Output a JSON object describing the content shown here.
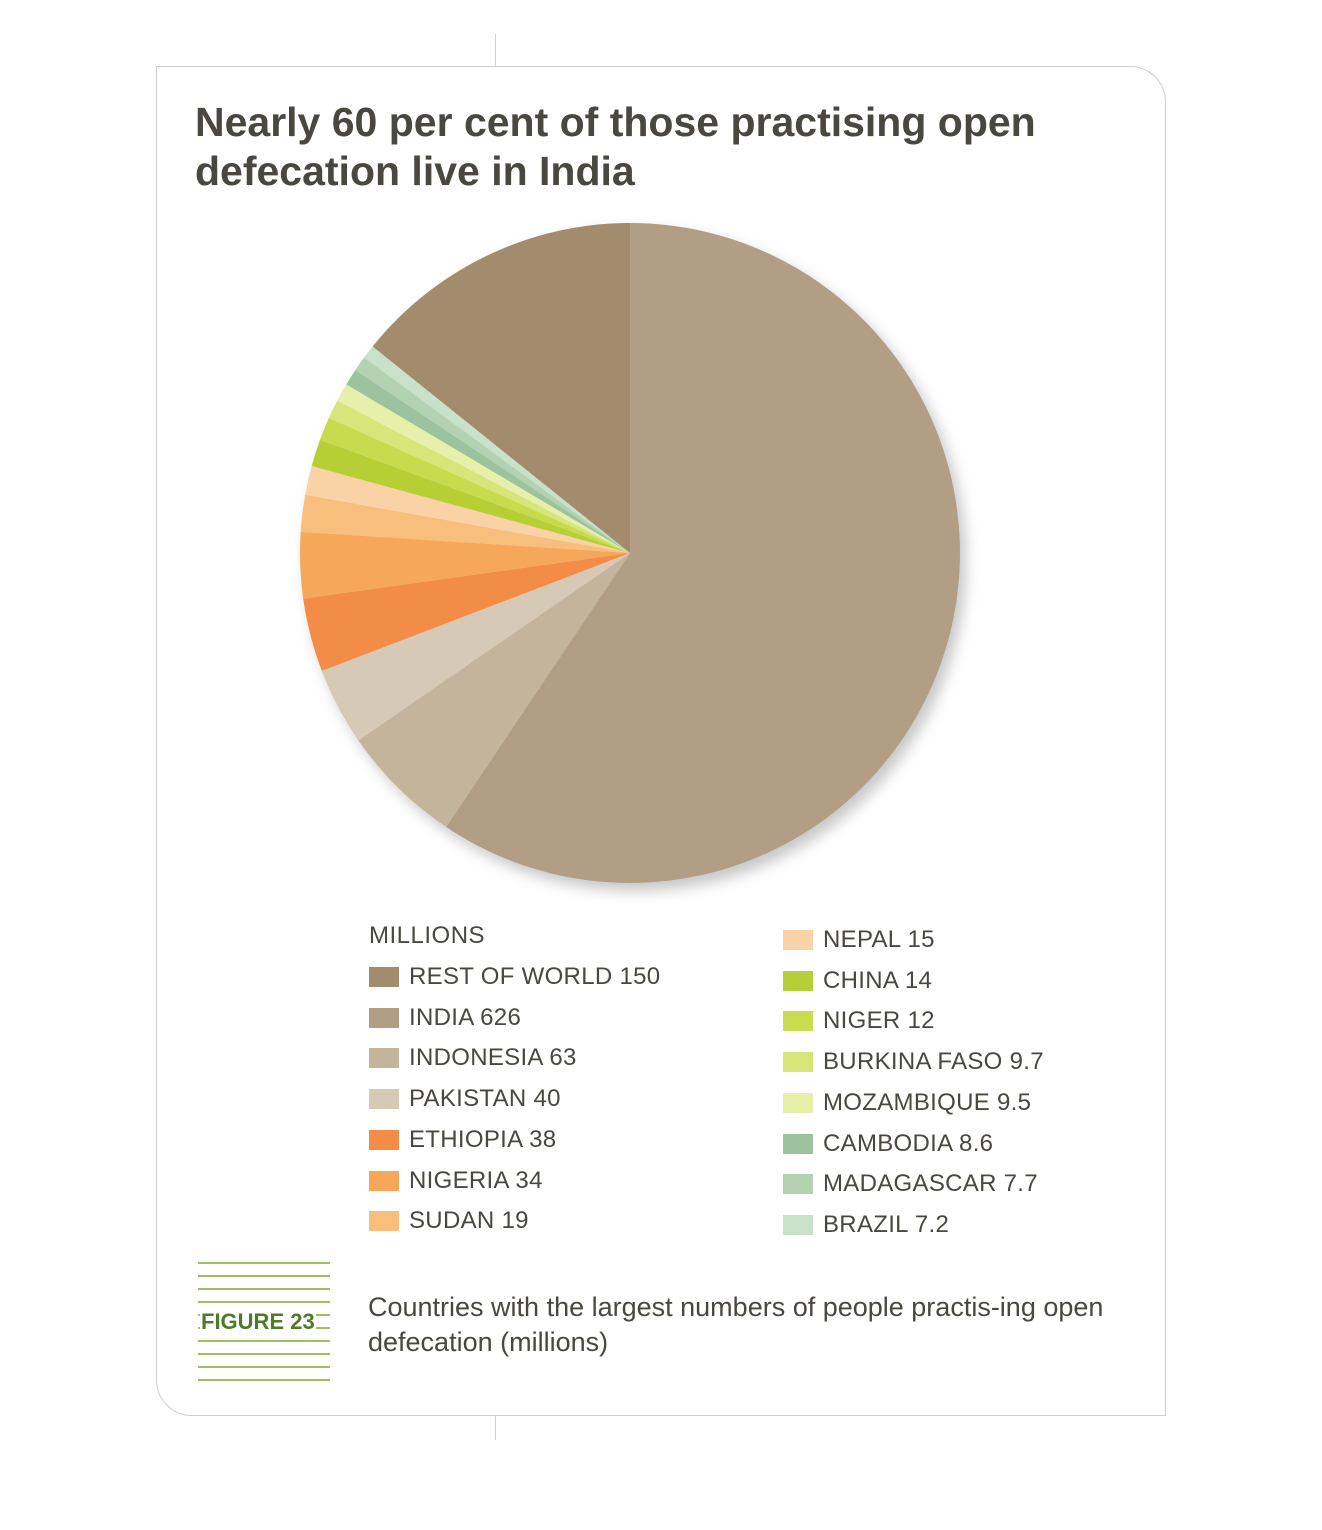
{
  "title": "Nearly 60 per cent of those practising open defecation live in India",
  "legend_heading": "MILLIONS",
  "figure_label": "FIGURE 23",
  "caption": "Countries with the largest numbers of people practis-ing open defecation (millions)",
  "chart_data": {
    "type": "pie",
    "unit": "millions",
    "slices": [
      {
        "name": "INDIA",
        "value": 626,
        "label": "INDIA 626",
        "color": "#b19e84"
      },
      {
        "name": "INDONESIA",
        "value": 63,
        "label": "INDONESIA 63",
        "color": "#c4b49c"
      },
      {
        "name": "PAKISTAN",
        "value": 40,
        "label": "PAKISTAN 40",
        "color": "#d6c9b6"
      },
      {
        "name": "ETHIOPIA",
        "value": 38,
        "label": "ETHIOPIA 38",
        "color": "#f28c46"
      },
      {
        "name": "NIGERIA",
        "value": 34,
        "label": "NIGERIA 34",
        "color": "#f6a75a"
      },
      {
        "name": "SUDAN",
        "value": 19,
        "label": "SUDAN 19",
        "color": "#f8be7c"
      },
      {
        "name": "NEPAL",
        "value": 15,
        "label": "NEPAL 15",
        "color": "#fbd2a6"
      },
      {
        "name": "CHINA",
        "value": 14,
        "label": " CHINA 14",
        "color": "#b5cf36"
      },
      {
        "name": "NIGER",
        "value": 12,
        "label": "NIGER 12",
        "color": "#c7dc4e"
      },
      {
        "name": "BURKINA FASO",
        "value": 9.7,
        "label": "BURKINA FASO 9.7",
        "color": "#d7e67a"
      },
      {
        "name": "MOZAMBIQUE",
        "value": 9.5,
        "label": "MOZAMBIQUE 9.5",
        "color": "#e6f0aa"
      },
      {
        "name": "CAMBODIA",
        "value": 8.6,
        "label": "CAMBODIA 8.6",
        "color": "#9cc39e"
      },
      {
        "name": "MADAGASCAR",
        "value": 7.7,
        "label": "MADAGASCAR 7.7",
        "color": "#b2d2b2"
      },
      {
        "name": "BRAZIL",
        "value": 7.2,
        "label": " BRAZIL 7.2",
        "color": "#c9e0c9"
      },
      {
        "name": "REST OF WORLD",
        "value": 150,
        "label": "REST OF WORLD 150",
        "color": "#a38b6d"
      }
    ],
    "legend_order": [
      "REST OF WORLD",
      "INDIA",
      "INDONESIA",
      "PAKISTAN",
      "ETHIOPIA",
      "NIGERIA",
      "SUDAN",
      "NEPAL",
      "CHINA",
      "NIGER",
      "BURKINA FASO",
      "MOZAMBIQUE",
      "CAMBODIA",
      "MADAGASCAR",
      "BRAZIL"
    ]
  }
}
